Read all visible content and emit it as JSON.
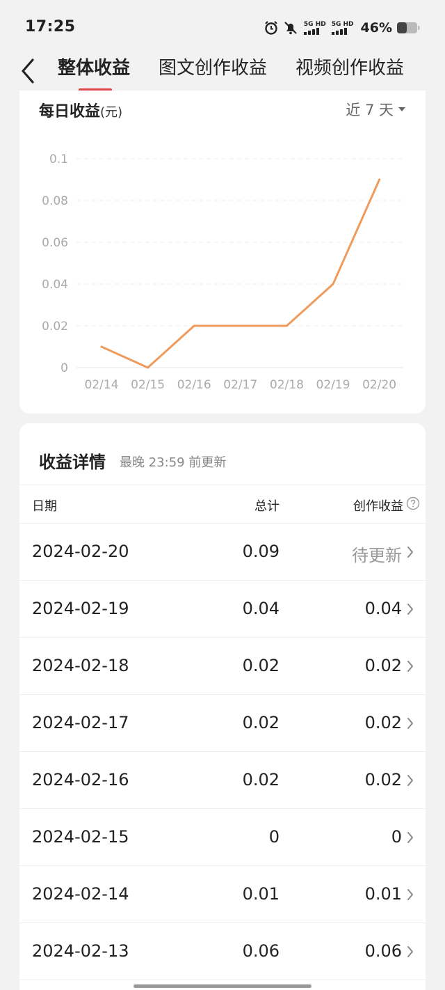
{
  "status_bar": {
    "time": "17:25",
    "net1": "5G HD",
    "net2": "5G HD",
    "battery": "46%",
    "icons": [
      "alarm-icon",
      "mute-icon",
      "signal-icon",
      "signal-icon",
      "battery-icon"
    ]
  },
  "header": {
    "tabs": [
      {
        "label": "整体收益",
        "active": true
      },
      {
        "label": "图文创作收益",
        "active": false
      },
      {
        "label": "视频创作收益",
        "active": false
      }
    ],
    "accent": "#e0454a"
  },
  "chart_section": {
    "title": "每日收益",
    "unit": "(元)",
    "range": "近 7 天"
  },
  "chart_data": {
    "type": "line",
    "x": [
      "02/14",
      "02/15",
      "02/16",
      "02/17",
      "02/18",
      "02/19",
      "02/20"
    ],
    "series": [
      {
        "values": [
          0.01,
          0,
          0.02,
          0.02,
          0.02,
          0.04,
          0.09
        ],
        "color": "#ef9b5e"
      }
    ],
    "y_ticks": [
      "0.1",
      "0.08",
      "0.06",
      "0.04",
      "0.02",
      "0"
    ],
    "ylim": [
      0,
      0.1
    ],
    "grid": true
  },
  "details": {
    "title": "收益详情",
    "subtitle": "最晚 23:59 前更新",
    "columns": {
      "date": "日期",
      "total": "总计",
      "creation": "创作收益"
    },
    "rows": [
      {
        "date": "2024-02-20",
        "total": "0.09",
        "creation": "待更新"
      },
      {
        "date": "2024-02-19",
        "total": "0.04",
        "creation": "0.04"
      },
      {
        "date": "2024-02-18",
        "total": "0.02",
        "creation": "0.02"
      },
      {
        "date": "2024-02-17",
        "total": "0.02",
        "creation": "0.02"
      },
      {
        "date": "2024-02-16",
        "total": "0.02",
        "creation": "0.02"
      },
      {
        "date": "2024-02-15",
        "total": "0",
        "creation": "0"
      },
      {
        "date": "2024-02-14",
        "total": "0.01",
        "creation": "0.01"
      },
      {
        "date": "2024-02-13",
        "total": "0.06",
        "creation": "0.06"
      }
    ]
  }
}
